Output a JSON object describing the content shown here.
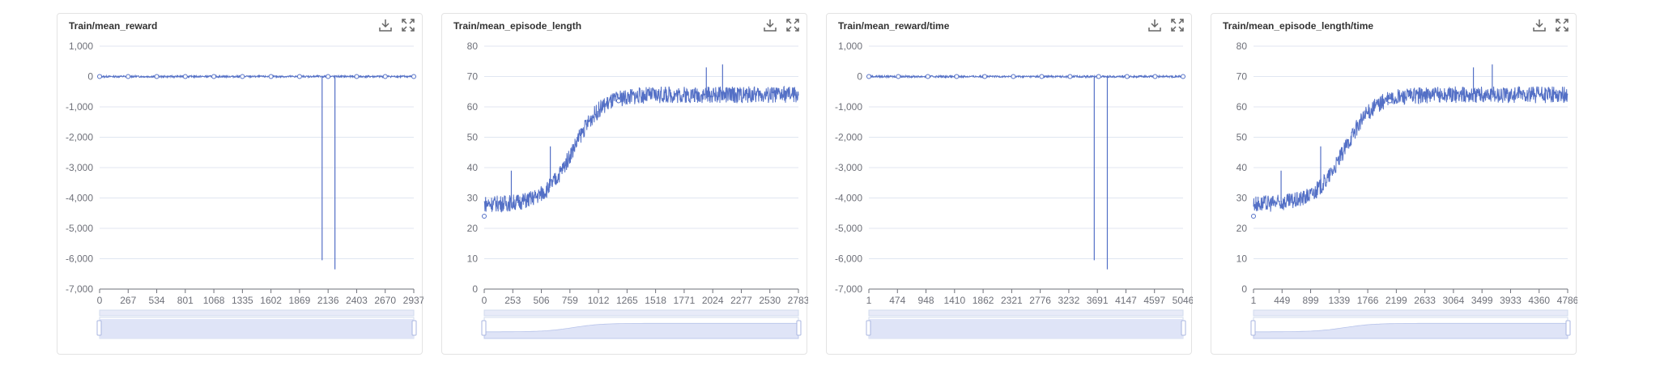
{
  "colors": {
    "series": "#5470c6",
    "grid": "#e0e6f1",
    "axis": "#6e7079",
    "slider_fill": "#dfe4f7"
  },
  "icons": {
    "download": "download-icon",
    "fullscreen": "fullscreen-icon"
  },
  "chart_data": [
    {
      "type": "line",
      "title": "Train/mean_reward",
      "x_ticks": [
        "0",
        "267",
        "534",
        "801",
        "1068",
        "1335",
        "1602",
        "1869",
        "2136",
        "2403",
        "2670",
        "2937"
      ],
      "y_ticks": [
        "1,000",
        "0",
        "-1,000",
        "-2,000",
        "-3,000",
        "-4,000",
        "-5,000",
        "-6,000",
        "-7,000"
      ],
      "xlim": [
        0,
        2937
      ],
      "ylim": [
        -7000,
        1000
      ],
      "pattern": "flat",
      "flat_value": 0,
      "spikes": [
        {
          "x": 2080,
          "y": -6050
        },
        {
          "x": 2200,
          "y": -6350
        }
      ],
      "markers_x": [
        0,
        267,
        534,
        801,
        1068,
        1335,
        1602,
        1869,
        2136,
        2403,
        2670,
        2937
      ]
    },
    {
      "type": "line",
      "title": "Train/mean_episode_length",
      "x_ticks": [
        "0",
        "253",
        "506",
        "759",
        "1012",
        "1265",
        "1518",
        "1771",
        "2024",
        "2277",
        "2530",
        "2783"
      ],
      "y_ticks": [
        "80",
        "70",
        "60",
        "50",
        "40",
        "30",
        "20",
        "10",
        "0"
      ],
      "xlim": [
        0,
        2900
      ],
      "ylim": [
        0,
        80
      ],
      "pattern": "sigmoid",
      "sigmoid": {
        "start": 28,
        "end": 64,
        "mid": 820,
        "scale": 130
      },
      "spikes": [
        {
          "x": 250,
          "y": 39
        },
        {
          "x": 610,
          "y": 47
        },
        {
          "x": 2050,
          "y": 73
        },
        {
          "x": 2200,
          "y": 74
        }
      ],
      "markers": [
        {
          "x": 0,
          "y": 24
        },
        {
          "x": 1240,
          "y": 62
        }
      ]
    },
    {
      "type": "line",
      "title": "Train/mean_reward/time",
      "x_ticks": [
        "1",
        "474",
        "948",
        "1410",
        "1862",
        "2321",
        "2776",
        "3232",
        "3691",
        "4147",
        "4597",
        "5046"
      ],
      "y_ticks": [
        "1,000",
        "0",
        "-1,000",
        "-2,000",
        "-3,000",
        "-4,000",
        "-5,000",
        "-6,000",
        "-7,000"
      ],
      "xlim": [
        1,
        5046
      ],
      "ylim": [
        -7000,
        1000
      ],
      "pattern": "flat",
      "flat_value": 0,
      "spikes": [
        {
          "x": 3620,
          "y": -6050
        },
        {
          "x": 3830,
          "y": -6350
        }
      ],
      "markers_x": [
        1,
        474,
        948,
        1410,
        1862,
        2321,
        2776,
        3232,
        3691,
        4147,
        4597,
        5046
      ]
    },
    {
      "type": "line",
      "title": "Train/mean_episode_length/time",
      "x_ticks": [
        "1",
        "449",
        "899",
        "1339",
        "1766",
        "2199",
        "2633",
        "3064",
        "3499",
        "3933",
        "4360",
        "4786"
      ],
      "y_ticks": [
        "80",
        "70",
        "60",
        "50",
        "40",
        "30",
        "20",
        "10",
        "0"
      ],
      "xlim": [
        1,
        5000
      ],
      "ylim": [
        0,
        80
      ],
      "pattern": "sigmoid",
      "sigmoid": {
        "start": 28,
        "end": 64,
        "mid": 1450,
        "scale": 230
      },
      "spikes": [
        {
          "x": 440,
          "y": 39
        },
        {
          "x": 1070,
          "y": 47
        },
        {
          "x": 3500,
          "y": 73
        },
        {
          "x": 3800,
          "y": 74
        }
      ],
      "markers": [
        {
          "x": 1,
          "y": 24
        },
        {
          "x": 2170,
          "y": 62
        }
      ]
    }
  ]
}
